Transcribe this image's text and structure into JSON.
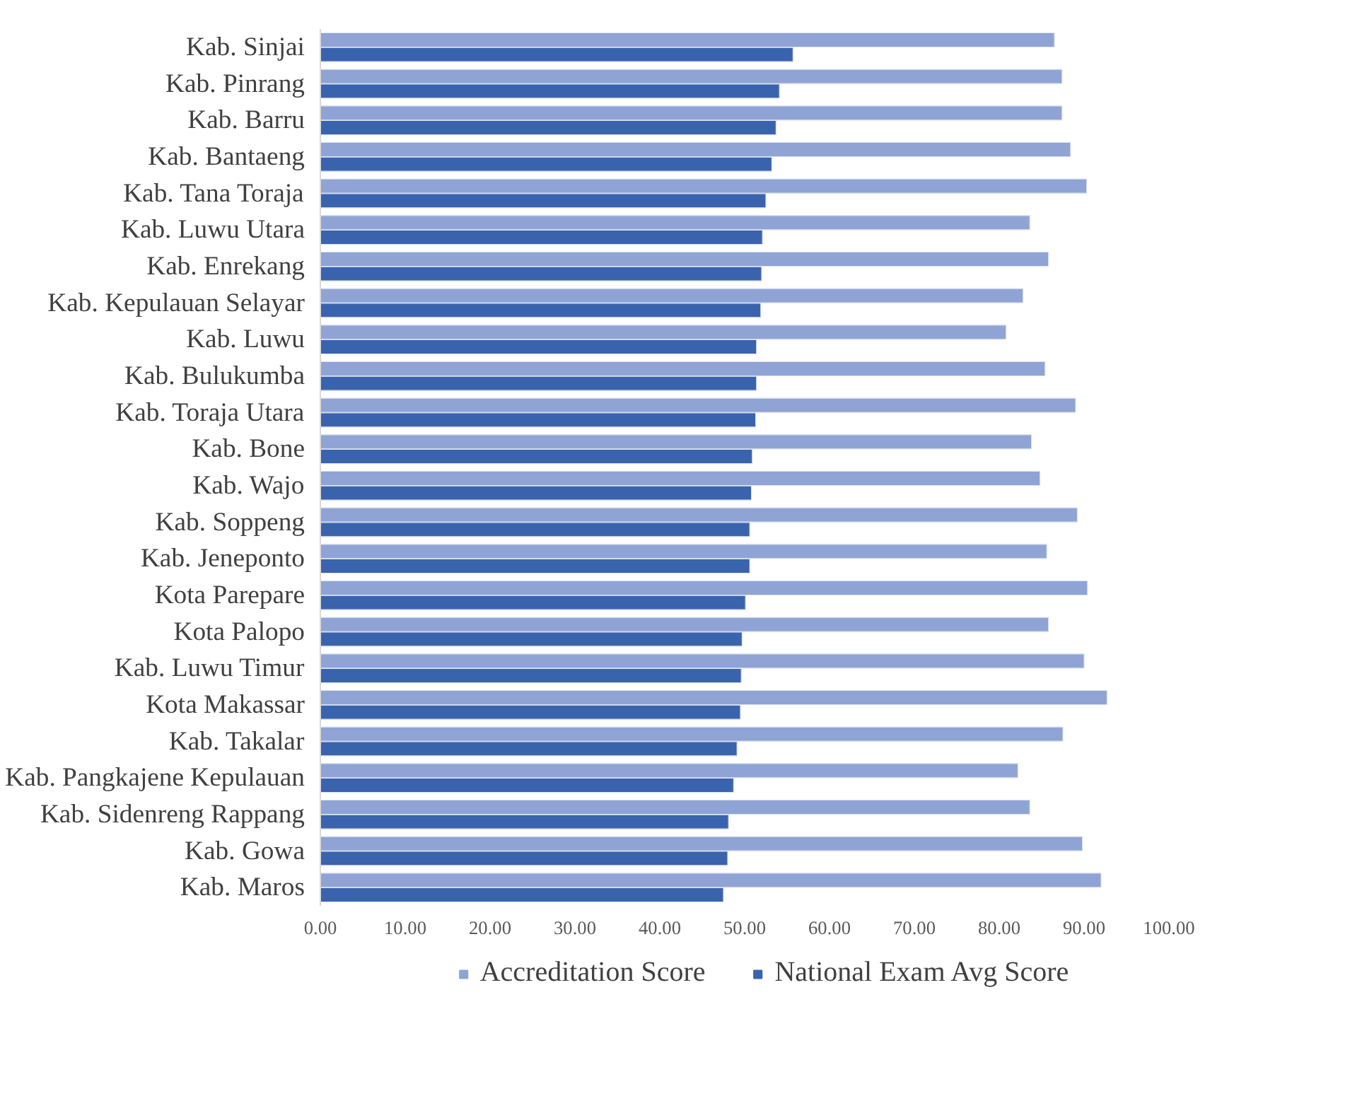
{
  "chart_data": {
    "type": "bar",
    "orientation": "horizontal",
    "categories": [
      "Kab. Sinjai",
      "Kab. Pinrang",
      "Kab. Barru",
      "Kab. Bantaeng",
      "Kab. Tana Toraja",
      "Kab. Luwu Utara",
      "Kab. Enrekang",
      "Kab. Kepulauan Selayar",
      "Kab. Luwu",
      "Kab. Bulukumba",
      "Kab. Toraja Utara",
      "Kab. Bone",
      "Kab. Wajo",
      "Kab. Soppeng",
      "Kab. Jeneponto",
      "Kota Parepare",
      "Kota Palopo",
      "Kab. Luwu Timur",
      "Kota Makassar",
      "Kab. Takalar",
      "Kab. Pangkajene Kepulauan",
      "Kab. Sidenreng Rappang",
      "Kab. Gowa",
      "Kab. Maros"
    ],
    "series": [
      {
        "name": "Accreditation Score",
        "color": "#8fa4d4",
        "values": [
          86.5,
          87.4,
          87.4,
          88.4,
          90.3,
          83.6,
          85.8,
          82.8,
          80.8,
          85.4,
          89.0,
          83.8,
          84.8,
          89.2,
          85.6,
          90.4,
          85.8,
          90.0,
          92.7,
          87.5,
          82.2,
          83.6,
          89.8,
          92.0
        ]
      },
      {
        "name": "National Exam Avg Score",
        "color": "#3a63ad",
        "values": [
          55.7,
          54.1,
          53.7,
          53.2,
          52.5,
          52.1,
          52.0,
          51.9,
          51.4,
          51.4,
          51.3,
          50.9,
          50.8,
          50.6,
          50.6,
          50.1,
          49.7,
          49.6,
          49.5,
          49.1,
          48.7,
          48.1,
          48.0,
          47.5
        ]
      }
    ],
    "xlim": [
      0,
      100
    ],
    "xticks": [
      {
        "value": 0,
        "label": "0.00"
      },
      {
        "value": 10,
        "label": "10.00"
      },
      {
        "value": 20,
        "label": "20.00"
      },
      {
        "value": 30,
        "label": "30.00"
      },
      {
        "value": 40,
        "label": "40.00"
      },
      {
        "value": 50,
        "label": "50.00"
      },
      {
        "value": 60,
        "label": "60.00"
      },
      {
        "value": 70,
        "label": "70.00"
      },
      {
        "value": 80,
        "label": "80.00"
      },
      {
        "value": 90,
        "label": "90.00"
      },
      {
        "value": 100,
        "label": "100.00"
      }
    ],
    "grid": false,
    "legend": "bottom"
  }
}
